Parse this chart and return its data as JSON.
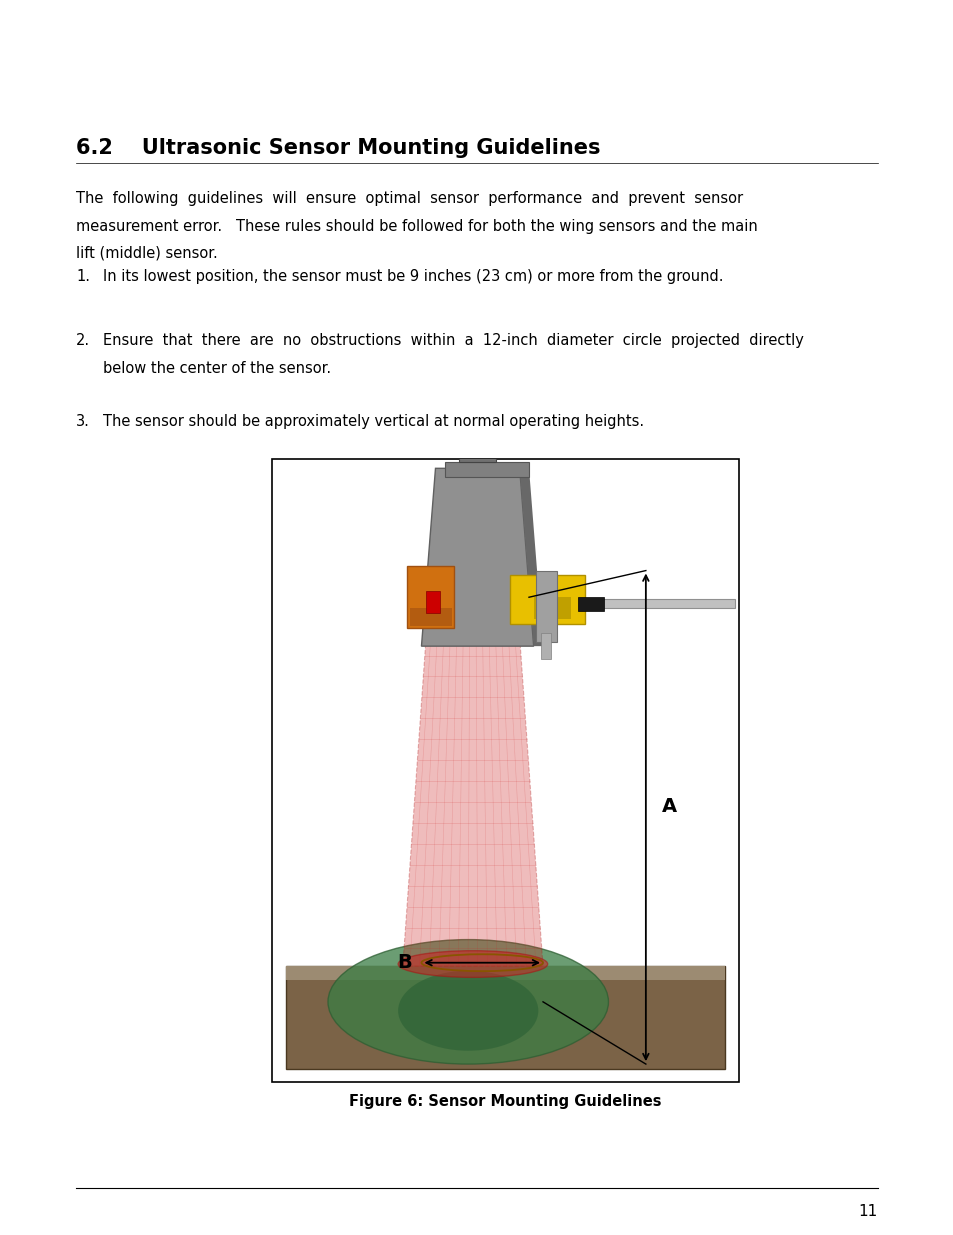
{
  "title": "6.2    Ultrasonic Sensor Mounting Guidelines",
  "intro_lines": [
    "The  following  guidelines  will  ensure  optimal  sensor  performance  and  prevent  sensor",
    "measurement error.   These rules should be followed for both the wing sensors and the main",
    "lift (middle) sensor."
  ],
  "item1": "In its lowest position, the sensor must be 9 inches (23 cm) or more from the ground.",
  "item2a": "Ensure  that  there  are  no  obstructions  within  a  12-inch  diameter  circle  projected  directly",
  "item2b": "below the center of the sensor.",
  "item3": "The sensor should be approximately vertical at normal operating heights.",
  "figure_caption": "Figure 6: Sensor Mounting Guidelines",
  "page_number": "11",
  "bg_color": "#ffffff",
  "text_color": "#000000"
}
